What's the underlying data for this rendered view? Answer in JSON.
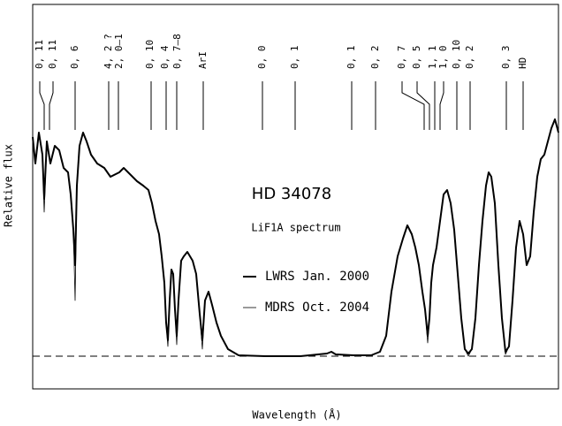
{
  "chart_data": {
    "type": "line",
    "title": "HD 34078",
    "subtitle": "LiF1A spectrum",
    "x_label": "Wavelength (Å)",
    "y_label": "Relative flux",
    "xlim": [
      37,
      632
    ],
    "ylim": [
      -37,
      398
    ],
    "baseline": 0,
    "features": [
      {
        "label": "0, 11",
        "x": 50
      },
      {
        "label": "0, 11",
        "x": 56
      },
      {
        "label": "0, 6",
        "x": 85
      },
      {
        "label": "4, 2 ?",
        "x": 123
      },
      {
        "label": "2, 0–1",
        "x": 134
      },
      {
        "label": "0, 10",
        "x": 171
      },
      {
        "label": "0, 4",
        "x": 188
      },
      {
        "label": "0, 7–8",
        "x": 200
      },
      {
        "label": "ArI",
        "x": 230
      },
      {
        "label": "0, 0",
        "x": 297
      },
      {
        "label": "0, 1",
        "x": 334
      },
      {
        "label": "0, 1",
        "x": 398
      },
      {
        "label": "0, 2",
        "x": 425
      },
      {
        "label": "0, 7",
        "x": 480
      },
      {
        "label": "0, 5",
        "x": 486
      },
      {
        "label": "1, 1",
        "x": 492
      },
      {
        "label": "1, 0",
        "x": 498
      },
      {
        "label": "0, 10",
        "x": 517
      },
      {
        "label": "0, 2",
        "x": 532
      },
      {
        "label": "0, 3",
        "x": 573
      },
      {
        "label": "HD",
        "x": 592
      }
    ],
    "x": [
      37,
      40,
      44,
      48,
      50,
      53,
      57,
      62,
      67,
      72,
      77,
      80,
      83,
      85,
      87,
      90,
      94,
      98,
      103,
      110,
      118,
      125,
      135,
      140,
      145,
      155,
      162,
      168,
      172,
      176,
      180,
      183,
      186,
      188,
      190,
      192,
      194,
      196,
      198,
      200,
      202,
      205,
      208,
      212,
      218,
      222,
      226,
      229,
      232,
      236,
      240,
      245,
      250,
      258,
      270,
      300,
      340,
      370,
      375,
      380,
      400,
      420,
      430,
      437,
      443,
      450,
      456,
      461,
      466,
      470,
      474,
      478,
      481,
      484,
      486,
      488,
      490,
      494,
      498,
      502,
      506,
      510,
      514,
      518,
      522,
      526,
      530,
      534,
      538,
      542,
      546,
      550,
      553,
      556,
      560,
      564,
      568,
      572,
      576,
      580,
      584,
      588,
      592,
      596,
      600,
      604,
      608,
      612,
      616,
      620,
      624,
      628,
      632
    ],
    "series": [
      {
        "name": "LWRS Jan. 2000",
        "color": "#000000",
        "width": 2,
        "values": [
          248,
          218,
          253,
          228,
          178,
          243,
          218,
          238,
          233,
          213,
          208,
          183,
          143,
          103,
          193,
          238,
          253,
          243,
          228,
          218,
          213,
          203,
          208,
          213,
          208,
          198,
          193,
          188,
          173,
          153,
          138,
          113,
          83,
          38,
          18,
          63,
          98,
          93,
          53,
          23,
          63,
          108,
          113,
          118,
          108,
          93,
          48,
          18,
          63,
          73,
          58,
          38,
          23,
          8,
          1,
          0,
          0,
          3,
          5,
          2,
          1,
          1,
          5,
          23,
          73,
          113,
          133,
          148,
          138,
          123,
          103,
          73,
          53,
          23,
          43,
          83,
          103,
          123,
          153,
          183,
          188,
          173,
          143,
          93,
          43,
          8,
          3,
          8,
          43,
          103,
          153,
          193,
          208,
          203,
          173,
          103,
          43,
          5,
          11,
          63,
          123,
          153,
          138,
          103,
          113,
          163,
          203,
          223,
          228,
          243,
          258,
          268,
          253
        ]
      },
      {
        "name": "MDRS Oct. 2004",
        "color": "#000000",
        "width": 0.8,
        "values": [
          243,
          223,
          253,
          228,
          163,
          243,
          218,
          238,
          233,
          213,
          208,
          183,
          143,
          63,
          193,
          238,
          253,
          243,
          228,
          218,
          213,
          203,
          208,
          213,
          208,
          198,
          193,
          188,
          173,
          153,
          138,
          113,
          83,
          38,
          11,
          63,
          98,
          93,
          53,
          13,
          63,
          108,
          113,
          118,
          108,
          93,
          48,
          8,
          63,
          73,
          58,
          38,
          23,
          8,
          1,
          0,
          0,
          3,
          5,
          2,
          1,
          1,
          5,
          23,
          73,
          113,
          133,
          148,
          138,
          123,
          103,
          73,
          53,
          15,
          43,
          83,
          103,
          123,
          153,
          183,
          188,
          173,
          143,
          93,
          43,
          8,
          0,
          8,
          43,
          103,
          153,
          193,
          208,
          203,
          173,
          103,
          43,
          2,
          11,
          63,
          123,
          153,
          138,
          103,
          113,
          163,
          203,
          223,
          228,
          243,
          258,
          268,
          253
        ]
      }
    ]
  }
}
